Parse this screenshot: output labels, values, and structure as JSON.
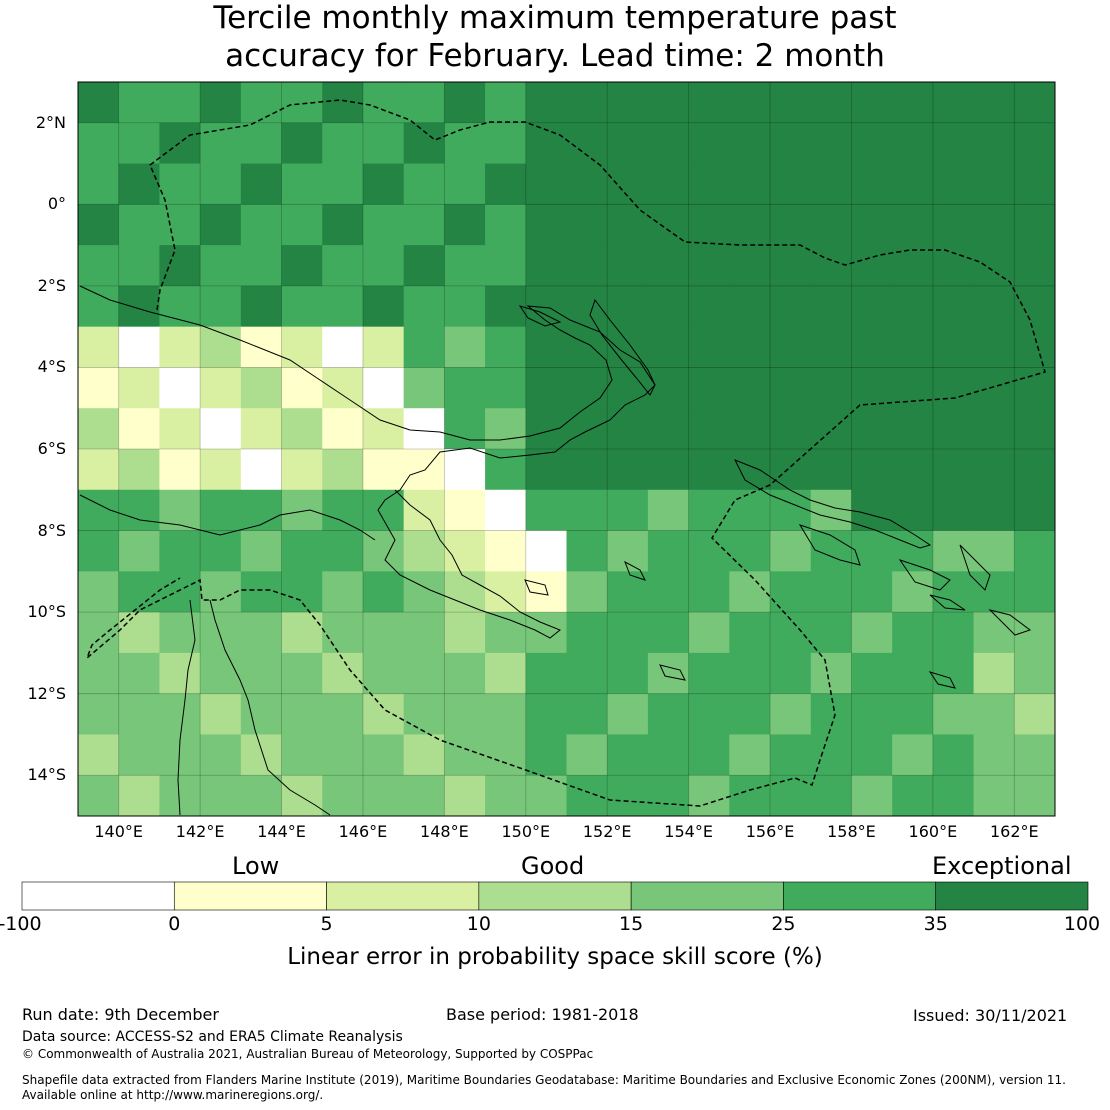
{
  "title": {
    "line1": "Tercile monthly maximum temperature past",
    "line2": "accuracy for February. Lead time: 2 month"
  },
  "map": {
    "lon_range": [
      139,
      163
    ],
    "lat_range": [
      -15,
      3
    ],
    "lat_labels": [
      "2°N",
      "0°",
      "2°S",
      "4°S",
      "6°S",
      "8°S",
      "10°S",
      "12°S",
      "14°S"
    ],
    "lat_values": [
      2,
      0,
      -2,
      -4,
      -6,
      -8,
      -10,
      -12,
      -14
    ],
    "lon_labels": [
      "140°E",
      "142°E",
      "144°E",
      "146°E",
      "148°E",
      "150°E",
      "152°E",
      "154°E",
      "156°E",
      "158°E",
      "160°E",
      "162°E"
    ],
    "lon_values": [
      140,
      142,
      144,
      146,
      148,
      150,
      152,
      154,
      156,
      158,
      160,
      162
    ],
    "palette": [
      "#ffffff",
      "#ffffcc",
      "#d9f0a3",
      "#addd8e",
      "#78c679",
      "#41ab5d",
      "#238443"
    ]
  },
  "colorbar": {
    "category_low": "Low",
    "category_good": "Good",
    "category_exceptional": "Exceptional",
    "ticks": [
      "-100",
      "0",
      "5",
      "10",
      "15",
      "25",
      "35",
      "100"
    ],
    "colors": [
      "#ffffff",
      "#ffffcc",
      "#d9f0a3",
      "#addd8e",
      "#78c679",
      "#41ab5d",
      "#238443"
    ],
    "label": "Linear error in probability space skill score (%)"
  },
  "footer": {
    "run_date": "Run date: 9th December",
    "base_period": "Base period: 1981-2018",
    "issued": "Issued: 30/11/2021",
    "data_source": "Data source: ACCESS-S2 and ERA5 Climate Reanalysis",
    "copyright": "© Commonwealth of Australia 2021, Australian Bureau of Meteorology, Supported by COSPPac",
    "shapefile_line1": "Shapefile data extracted from Flanders Marine Institute (2019), Maritime Boundaries Geodatabase: Maritime Boundaries and Exclusive Economic Zones (200NM), version 11.",
    "shapefile_line2": "Available online at http://www.marineregions.org/."
  }
}
